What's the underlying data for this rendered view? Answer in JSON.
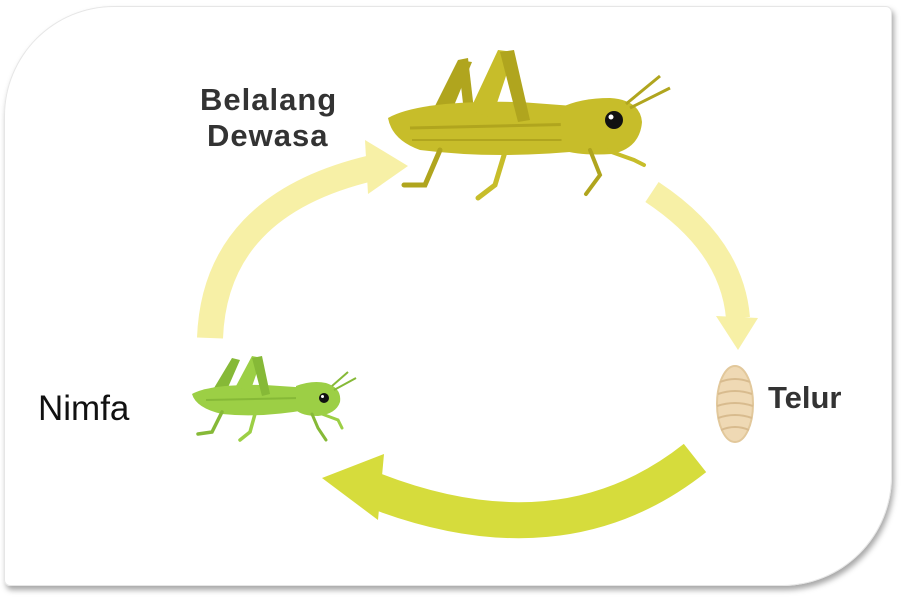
{
  "stages": {
    "adult": {
      "line1": "Belalang",
      "line2": "Dewasa"
    },
    "egg": {
      "label": "Telur"
    },
    "nymph": {
      "label": "Nimfa"
    }
  },
  "colors": {
    "arrow_light": "#f7f0a6",
    "arrow_strong": "#d6dc3c",
    "adult_body": "#c7bd2a",
    "adult_shade": "#b0a51e",
    "nymph_body": "#9ccf45",
    "nymph_shade": "#86b937",
    "egg": "#efd9b4",
    "egg_shade": "#d8bb8e",
    "text": "#333333"
  },
  "icons": [
    "adult-grasshopper-icon",
    "nymph-grasshopper-icon",
    "egg-icon"
  ]
}
